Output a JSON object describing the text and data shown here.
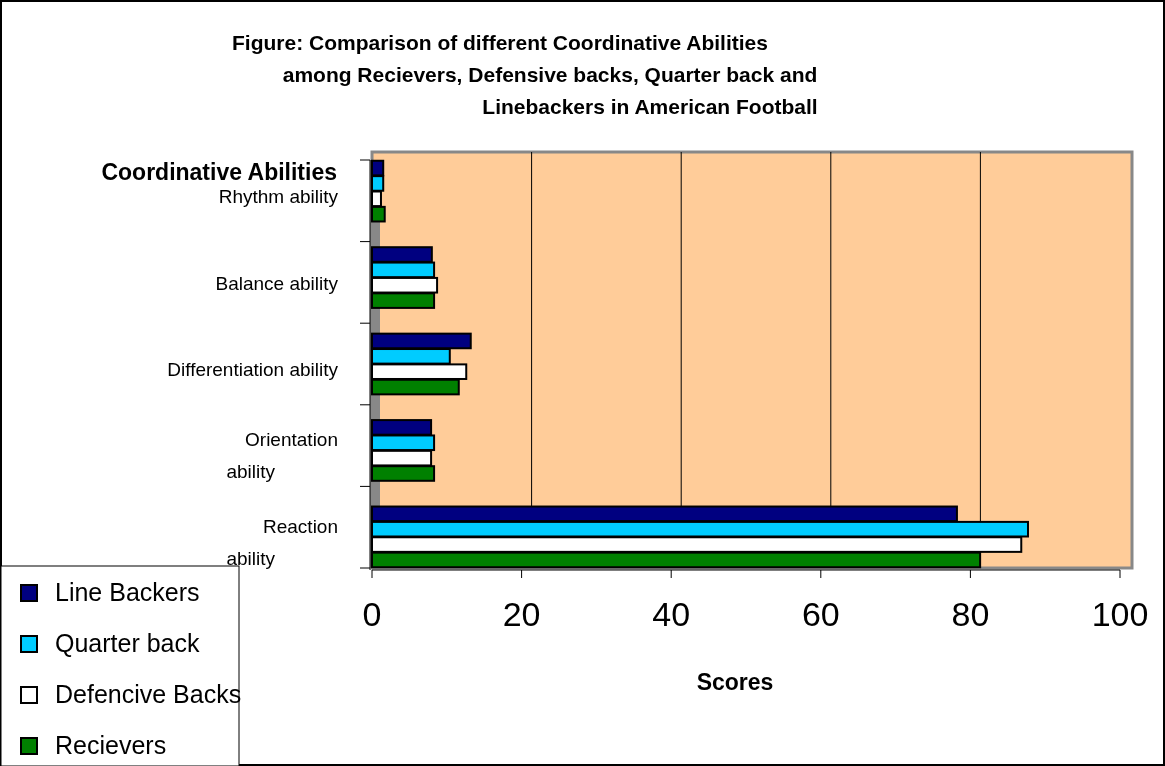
{
  "chart_data": {
    "type": "bar",
    "orientation": "horizontal",
    "title": "Figure: Comparison of different Coordinative Abilities among Recievers, Defensive backs, Quarter back and Linebackers in American Football",
    "ylabel": "Coordinative Abilities",
    "xlabel": "Scores",
    "categories": [
      "Rhythm ability",
      "Balance ability",
      "Differentiation ability",
      "Orientation ability",
      "Reaction ability"
    ],
    "series": [
      {
        "name": "Line Backers",
        "color": "#000080",
        "values": [
          1.5,
          8.0,
          13.2,
          7.9,
          78.2
        ]
      },
      {
        "name": "Quarter back",
        "color": "#00ccff",
        "values": [
          1.5,
          8.3,
          10.4,
          8.3,
          87.7
        ]
      },
      {
        "name": "Defencive Backs",
        "color": "#ffffff",
        "values": [
          1.2,
          8.7,
          12.6,
          7.9,
          86.8
        ]
      },
      {
        "name": "Recievers",
        "color": "#008000",
        "values": [
          1.7,
          8.3,
          11.6,
          8.3,
          81.3
        ]
      }
    ],
    "xlim": [
      0,
      100
    ],
    "xticks": [
      0,
      20,
      40,
      60,
      80,
      100
    ],
    "grid": "x",
    "legend": "bottom left"
  }
}
